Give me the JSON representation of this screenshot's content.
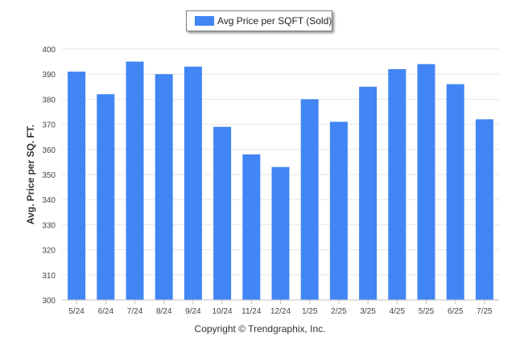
{
  "colors": {
    "bar": "#4285F4",
    "grid": "#e6e6e6",
    "axis": "#bfbfbf",
    "text": "#444444"
  },
  "legend": {
    "label": "Avg Price per SQFT (Sold)"
  },
  "footer": {
    "copyright": "Copyright © Trendgraphix, Inc."
  },
  "chart_data": {
    "type": "bar",
    "categories": [
      "5/24",
      "6/24",
      "7/24",
      "8/24",
      "9/24",
      "10/24",
      "11/24",
      "12/24",
      "1/25",
      "2/25",
      "3/25",
      "4/25",
      "5/25",
      "6/25",
      "7/25"
    ],
    "series": [
      {
        "name": "Avg Price per SQFT (Sold)",
        "values": [
          391,
          382,
          395,
          390,
          393,
          369,
          358,
          353,
          380,
          371,
          385,
          392,
          394,
          386,
          372
        ]
      }
    ],
    "title": "",
    "xlabel": "",
    "ylabel": "Avg. Price per SQ. FT.",
    "ylim": [
      300,
      400
    ],
    "yticks": [
      300,
      310,
      320,
      330,
      340,
      350,
      360,
      370,
      380,
      390,
      400
    ],
    "grid": true,
    "legend_position": "top-center"
  }
}
